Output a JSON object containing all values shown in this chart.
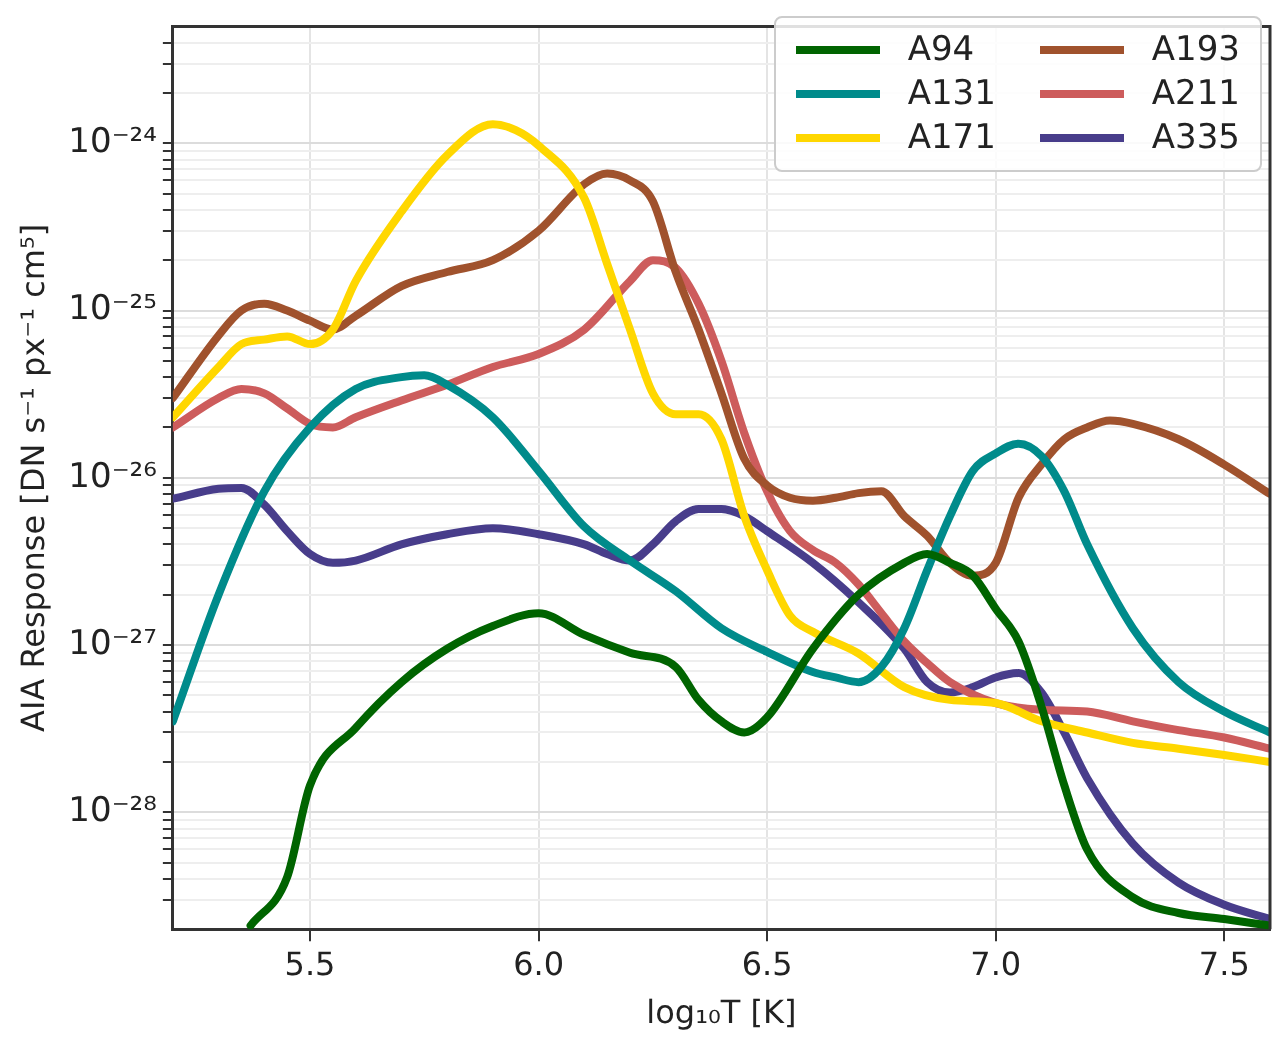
{
  "chart_data": {
    "type": "line",
    "xlabel": "log₁₀T [K]",
    "ylabel": "AIA Response [DN s⁻¹ px⁻¹ cm⁵]",
    "log": "y",
    "grid": true,
    "legend": "top right",
    "marker": "none",
    "line_style": "solid",
    "xlim": [
      5.2,
      7.6
    ],
    "xticks": [
      5.5,
      {
        "value": 6,
        "label": "6.0"
      },
      6.5,
      {
        "value": 7,
        "label": "7.0"
      },
      7.5
    ],
    "ylim": [
      2e-29,
      5e-24
    ],
    "yticks": [
      {
        "value": 3e-29,
        "label": null
      },
      {
        "value": 4e-29,
        "label": null
      },
      {
        "value": 5e-29,
        "label": null
      },
      {
        "value": 6e-29,
        "label": null
      },
      {
        "value": 7e-29,
        "label": null
      },
      {
        "value": 8e-29,
        "label": null
      },
      {
        "value": 9e-29,
        "label": null
      },
      {
        "value": 1e-28,
        "label": "10⁻²⁸"
      },
      {
        "value": 2e-28,
        "label": null
      },
      {
        "value": 3e-28,
        "label": null
      },
      {
        "value": 4e-28,
        "label": null
      },
      {
        "value": 5e-28,
        "label": null
      },
      {
        "value": 6e-28,
        "label": null
      },
      {
        "value": 7e-28,
        "label": null
      },
      {
        "value": 8e-28,
        "label": null
      },
      {
        "value": 9e-28,
        "label": null
      },
      {
        "value": 1e-27,
        "label": "10⁻²⁷"
      },
      {
        "value": 2e-27,
        "label": null
      },
      {
        "value": 3e-27,
        "label": null
      },
      {
        "value": 4e-27,
        "label": null
      },
      {
        "value": 5e-27,
        "label": null
      },
      {
        "value": 6e-27,
        "label": null
      },
      {
        "value": 7e-27,
        "label": null
      },
      {
        "value": 8e-27,
        "label": null
      },
      {
        "value": 9e-27,
        "label": null
      },
      {
        "value": 1e-26,
        "label": "10⁻²⁶"
      },
      {
        "value": 2e-26,
        "label": null
      },
      {
        "value": 3e-26,
        "label": null
      },
      {
        "value": 4e-26,
        "label": null
      },
      {
        "value": 5e-26,
        "label": null
      },
      {
        "value": 6e-26,
        "label": null
      },
      {
        "value": 7e-26,
        "label": null
      },
      {
        "value": 8e-26,
        "label": null
      },
      {
        "value": 9e-26,
        "label": null
      },
      {
        "value": 1e-25,
        "label": "10⁻²⁵"
      },
      {
        "value": 2e-25,
        "label": null
      },
      {
        "value": 3e-25,
        "label": null
      },
      {
        "value": 4e-25,
        "label": null
      },
      {
        "value": 5e-25,
        "label": null
      },
      {
        "value": 6e-25,
        "label": null
      },
      {
        "value": 7e-25,
        "label": null
      },
      {
        "value": 8e-25,
        "label": null
      },
      {
        "value": 9e-25,
        "label": null
      },
      {
        "value": 1e-24,
        "label": "10⁻²⁴"
      },
      {
        "value": 2e-24,
        "label": null
      },
      {
        "value": 3e-24,
        "label": null
      },
      {
        "value": 4e-24,
        "label": null
      }
    ],
    "series": [
      {
        "name": "A94",
        "color": "#006400",
        "x": [
          5.37,
          5.45,
          5.5,
          5.6,
          5.7,
          5.8,
          5.9,
          6.0,
          6.1,
          6.2,
          6.3,
          6.35,
          6.4,
          6.45,
          6.5,
          6.6,
          6.7,
          6.8,
          6.85,
          6.9,
          6.95,
          7.0,
          7.05,
          7.1,
          7.15,
          7.2,
          7.3,
          7.4,
          7.5,
          7.6
        ],
        "values": [
          2.1e-29,
          4.1e-29,
          1.45e-28,
          3.2e-28,
          6e-28,
          9.5e-28,
          1.3e-27,
          1.55e-27,
          1.15e-27,
          9e-28,
          7.4e-28,
          4.7e-28,
          3.5e-28,
          3e-28,
          3.7e-28,
          9.5e-28,
          2e-27,
          3.1e-27,
          3.5e-27,
          3.1e-27,
          2.6e-27,
          1.65e-27,
          1.05e-27,
          4.3e-28,
          1.45e-28,
          6e-29,
          3.1e-29,
          2.5e-29,
          2.3e-29,
          2.1e-29
        ]
      },
      {
        "name": "A131",
        "color": "#008b8b",
        "x": [
          5.2,
          5.3,
          5.4,
          5.5,
          5.6,
          5.7,
          5.75,
          5.8,
          5.9,
          6.0,
          6.1,
          6.2,
          6.3,
          6.4,
          6.5,
          6.6,
          6.65,
          6.7,
          6.75,
          6.8,
          6.85,
          6.9,
          6.95,
          7.0,
          7.05,
          7.1,
          7.15,
          7.2,
          7.3,
          7.4,
          7.5,
          7.6
        ],
        "values": [
          3.5e-28,
          2e-27,
          8.3e-27,
          2e-26,
          3.4e-26,
          4e-26,
          4.1e-26,
          3.6e-26,
          2.3e-26,
          1.1e-26,
          5.1e-27,
          3.2e-27,
          2.1e-27,
          1.26e-27,
          9.1e-28,
          6.9e-28,
          6.4e-28,
          6e-28,
          7.4e-28,
          1.26e-27,
          2.8e-27,
          5.9e-27,
          1.1e-26,
          1.4e-26,
          1.6e-26,
          1.35e-26,
          8.3e-27,
          4e-27,
          1.26e-27,
          6e-28,
          4e-28,
          3e-28
        ]
      },
      {
        "name": "A171",
        "color": "#ffd700",
        "x": [
          5.2,
          5.3,
          5.35,
          5.4,
          5.45,
          5.5,
          5.55,
          5.6,
          5.7,
          5.8,
          5.9,
          5.95,
          6.0,
          6.1,
          6.15,
          6.2,
          6.25,
          6.3,
          6.35,
          6.4,
          6.45,
          6.5,
          6.55,
          6.6,
          6.7,
          6.8,
          6.9,
          7.0,
          7.1,
          7.2,
          7.3,
          7.4,
          7.5,
          7.6
        ],
        "values": [
          2.3e-26,
          4.6e-26,
          6.3e-26,
          6.7e-26,
          7e-26,
          6.3e-26,
          7.7e-26,
          1.5e-25,
          3.9e-25,
          8.5e-25,
          1.3e-24,
          1.2e-24,
          9.7e-25,
          4.7e-25,
          1.9e-25,
          7.7e-26,
          3.2e-26,
          2.4e-26,
          2.4e-26,
          1.7e-26,
          5.9e-27,
          2.8e-27,
          1.5e-27,
          1.2e-27,
          8.9e-28,
          5.6e-28,
          4.7e-28,
          4.5e-28,
          3.5e-28,
          3e-28,
          2.6e-28,
          2.4e-28,
          2.2e-28,
          2e-28
        ]
      },
      {
        "name": "A193",
        "color": "#a0522d",
        "x": [
          5.2,
          5.3,
          5.35,
          5.4,
          5.45,
          5.5,
          5.55,
          5.6,
          5.7,
          5.8,
          5.9,
          6.0,
          6.1,
          6.15,
          6.2,
          6.25,
          6.3,
          6.35,
          6.4,
          6.45,
          6.5,
          6.55,
          6.6,
          6.65,
          6.7,
          6.75,
          6.8,
          6.85,
          6.9,
          6.95,
          7.0,
          7.05,
          7.1,
          7.15,
          7.2,
          7.25,
          7.3,
          7.4,
          7.5,
          7.6
        ],
        "values": [
          3e-26,
          7.1e-26,
          1e-25,
          1.1e-25,
          1e-25,
          8.7e-26,
          7.7e-26,
          9.3e-26,
          1.4e-25,
          1.7e-25,
          2e-25,
          3e-25,
          5.7e-25,
          6.6e-25,
          6e-25,
          4.5e-25,
          1.7e-25,
          7.7e-26,
          3.2e-26,
          1.3e-26,
          9e-27,
          7.6e-27,
          7.3e-27,
          7.6e-27,
          8.1e-27,
          8.3e-27,
          5.9e-27,
          4.5e-27,
          3.1e-27,
          2.6e-27,
          3.1e-27,
          7.6e-27,
          1.2e-26,
          1.7e-26,
          2e-26,
          2.2e-26,
          2.1e-26,
          1.7e-26,
          1.2e-26,
          8e-27
        ]
      },
      {
        "name": "A211",
        "color": "#cd5c5c",
        "x": [
          5.2,
          5.3,
          5.35,
          5.4,
          5.45,
          5.5,
          5.55,
          5.6,
          5.7,
          5.8,
          5.9,
          6.0,
          6.1,
          6.2,
          6.25,
          6.3,
          6.35,
          6.4,
          6.45,
          6.5,
          6.55,
          6.6,
          6.65,
          6.7,
          6.75,
          6.8,
          6.85,
          6.9,
          7.0,
          7.1,
          7.2,
          7.3,
          7.4,
          7.5,
          7.6
        ],
        "values": [
          2e-26,
          3e-26,
          3.4e-26,
          3.2e-26,
          2.6e-26,
          2.1e-26,
          2e-26,
          2.3e-26,
          2.9e-26,
          3.6e-26,
          4.6e-26,
          5.5e-26,
          7.7e-26,
          1.5e-25,
          2e-25,
          1.8e-25,
          1.1e-25,
          5e-26,
          1.85e-26,
          8.3e-27,
          4.8e-27,
          3.7e-27,
          3.1e-27,
          2.3e-27,
          1.55e-27,
          1.05e-27,
          7.8e-28,
          6e-28,
          4.5e-28,
          4.1e-28,
          4e-28,
          3.5e-28,
          3.1e-28,
          2.8e-28,
          2.4e-28
        ]
      },
      {
        "name": "A335",
        "color": "#483d8b",
        "x": [
          5.2,
          5.3,
          5.35,
          5.4,
          5.45,
          5.5,
          5.55,
          5.6,
          5.7,
          5.8,
          5.9,
          6.0,
          6.1,
          6.15,
          6.2,
          6.25,
          6.3,
          6.35,
          6.4,
          6.45,
          6.5,
          6.6,
          6.7,
          6.8,
          6.85,
          6.9,
          6.95,
          7.0,
          7.05,
          7.1,
          7.15,
          7.2,
          7.3,
          7.4,
          7.5,
          7.6
        ],
        "values": [
          7.5e-27,
          8.6e-27,
          8.7e-27,
          6.9e-27,
          4.8e-27,
          3.5e-27,
          3.1e-27,
          3.2e-27,
          4e-27,
          4.6e-27,
          5e-27,
          4.6e-27,
          4e-27,
          3.5e-27,
          3.2e-27,
          4e-27,
          5.5e-27,
          6.5e-27,
          6.5e-27,
          5.9e-27,
          4.8e-27,
          3.1e-27,
          1.8e-27,
          9.5e-28,
          6e-28,
          5.2e-28,
          5.6e-28,
          6.4e-28,
          6.8e-28,
          5.2e-28,
          3e-28,
          1.6e-28,
          6.5e-29,
          3.8e-29,
          2.8e-29,
          2.3e-29
        ]
      }
    ]
  }
}
